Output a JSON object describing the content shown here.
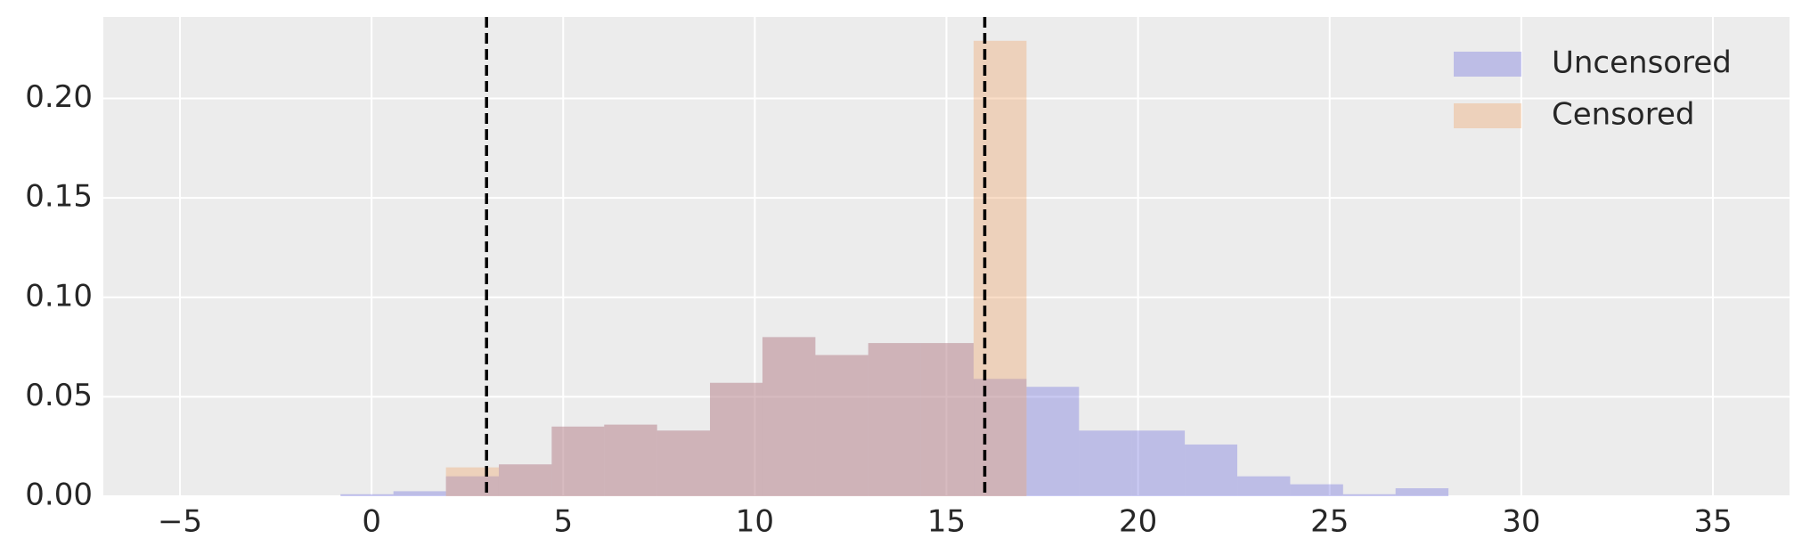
{
  "chart_data": {
    "type": "histogram",
    "xlim": [
      -7,
      37
    ],
    "ylim": [
      0,
      0.241
    ],
    "xticks": [
      {
        "value": -5,
        "label": "−5"
      },
      0,
      5,
      10,
      15,
      20,
      25,
      30,
      35
    ],
    "yticks": [
      {
        "value": 0,
        "label": "0.00"
      },
      {
        "value": 0.05,
        "label": "0.05"
      },
      {
        "value": 0.1,
        "label": "0.10"
      },
      {
        "value": 0.15,
        "label": "0.15"
      },
      {
        "value": 0.2,
        "label": "0.20"
      }
    ],
    "grid": true,
    "legend": "upper right",
    "vlines": [
      3,
      16
    ],
    "series": [
      {
        "name": "Uncensored",
        "color": "#6666dd",
        "bins": [
          -0.81,
          0.57,
          1.94,
          3.32,
          4.7,
          6.07,
          7.45,
          8.83,
          10.2,
          11.58,
          12.96,
          14.33,
          15.71,
          17.09,
          18.46,
          19.84,
          21.22,
          22.59,
          23.97,
          25.35,
          26.72,
          28.1
        ],
        "values": [
          0.001,
          0.0025,
          0.01,
          0.016,
          0.035,
          0.036,
          0.033,
          0.057,
          0.08,
          0.071,
          0.077,
          0.077,
          0.059,
          0.055,
          0.033,
          0.033,
          0.026,
          0.01,
          0.006,
          0.001,
          0.004
        ]
      },
      {
        "name": "Censored",
        "color": "#f0a060",
        "bins": [
          1.94,
          3.32,
          4.7,
          6.07,
          7.45,
          8.83,
          10.2,
          11.58,
          12.96,
          14.33,
          15.71,
          17.09
        ],
        "values": [
          0.0145,
          0.016,
          0.035,
          0.036,
          0.033,
          0.057,
          0.08,
          0.071,
          0.077,
          0.077,
          0.229
        ]
      }
    ]
  }
}
